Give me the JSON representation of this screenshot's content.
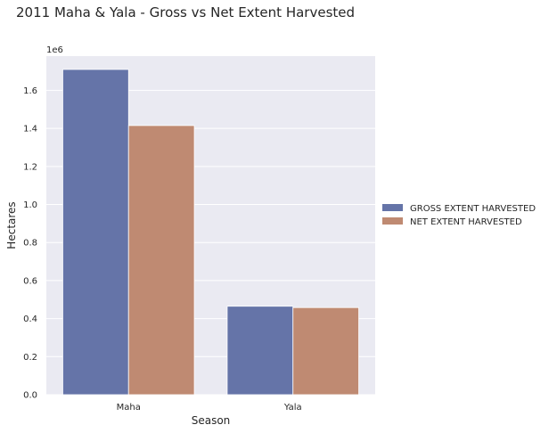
{
  "chart_data": {
    "type": "bar",
    "title": "2011 Maha & Yala - Gross vs Net Extent Harvested",
    "xlabel": "Season",
    "ylabel": "Hectares",
    "offset_label": "1e6",
    "categories": [
      "Maha",
      "Yala"
    ],
    "series": [
      {
        "name": "GROSS EXTENT HARVESTED",
        "values": [
          1710000,
          465000
        ],
        "color": "#6574a8"
      },
      {
        "name": "NET EXTENT HARVESTED",
        "values": [
          1415000,
          458000
        ],
        "color": "#bf8a72"
      }
    ],
    "ylim": [
      0,
      1780000
    ],
    "yticks": [
      0,
      200000,
      400000,
      600000,
      800000,
      1000000,
      1200000,
      1400000,
      1600000
    ],
    "ytick_labels": [
      "0.0",
      "0.2",
      "0.4",
      "0.6",
      "0.8",
      "1.0",
      "1.2",
      "1.4",
      "1.6"
    ],
    "grid": true,
    "legend_position": "right",
    "background": "#eaeaf2"
  }
}
